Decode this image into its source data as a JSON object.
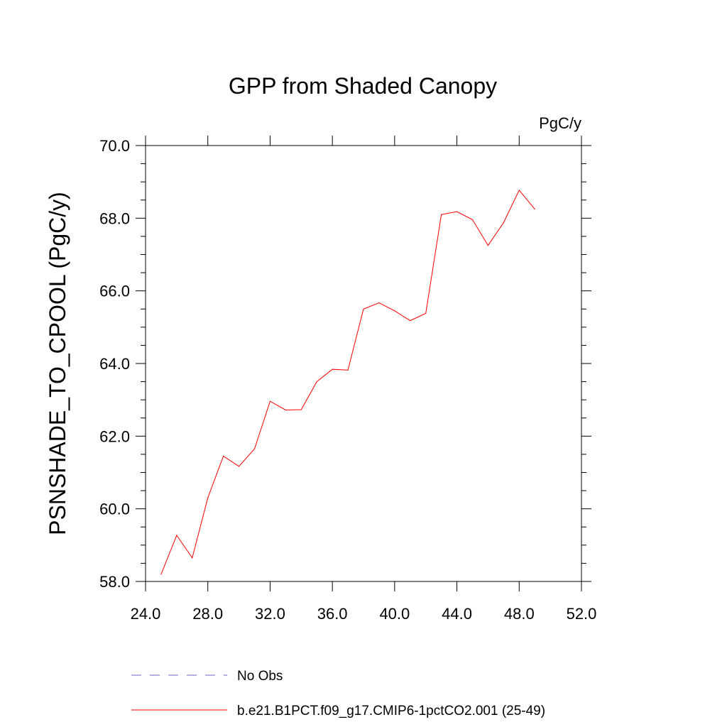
{
  "chart_data": {
    "type": "line",
    "title": "GPP from Shaded Canopy",
    "units": "PgC/y",
    "xlabel": "",
    "ylabel": "PSNSHADE_TO_CPOOL  (PgC/y)",
    "xlim": [
      24,
      52
    ],
    "ylim": [
      58,
      70
    ],
    "xticks": [
      24,
      28,
      32,
      36,
      40,
      44,
      48,
      52
    ],
    "xtick_labels": [
      "24.0",
      "28.0",
      "32.0",
      "36.0",
      "40.0",
      "44.0",
      "48.0",
      "52.0"
    ],
    "yticks": [
      58,
      60,
      62,
      64,
      66,
      68,
      70
    ],
    "ytick_labels": [
      "58.0",
      "60.0",
      "62.0",
      "64.0",
      "66.0",
      "68.0",
      "70.0"
    ],
    "x_minor_step": 1,
    "y_minor_step": 0.5,
    "grid": false,
    "legend_position": "bottom",
    "series": [
      {
        "name": "No Obs",
        "color": "#6666cc",
        "style": "dashed",
        "x": [],
        "y": []
      },
      {
        "name": "b.e21.B1PCT.f09_g17.CMIP6-1pctCO2.001 (25-49)",
        "color": "#ff0000",
        "style": "solid",
        "x": [
          25,
          26,
          27,
          28,
          29,
          30,
          31,
          32,
          33,
          34,
          35,
          36,
          37,
          38,
          39,
          40,
          41,
          42,
          43,
          44,
          45,
          46,
          47,
          48,
          49
        ],
        "y": [
          58.2,
          59.27,
          58.65,
          60.3,
          61.45,
          61.17,
          61.65,
          62.96,
          62.72,
          62.73,
          63.5,
          63.84,
          63.82,
          65.5,
          65.67,
          65.45,
          65.18,
          65.38,
          68.1,
          68.18,
          67.96,
          67.25,
          67.88,
          68.77,
          68.25
        ]
      }
    ]
  }
}
